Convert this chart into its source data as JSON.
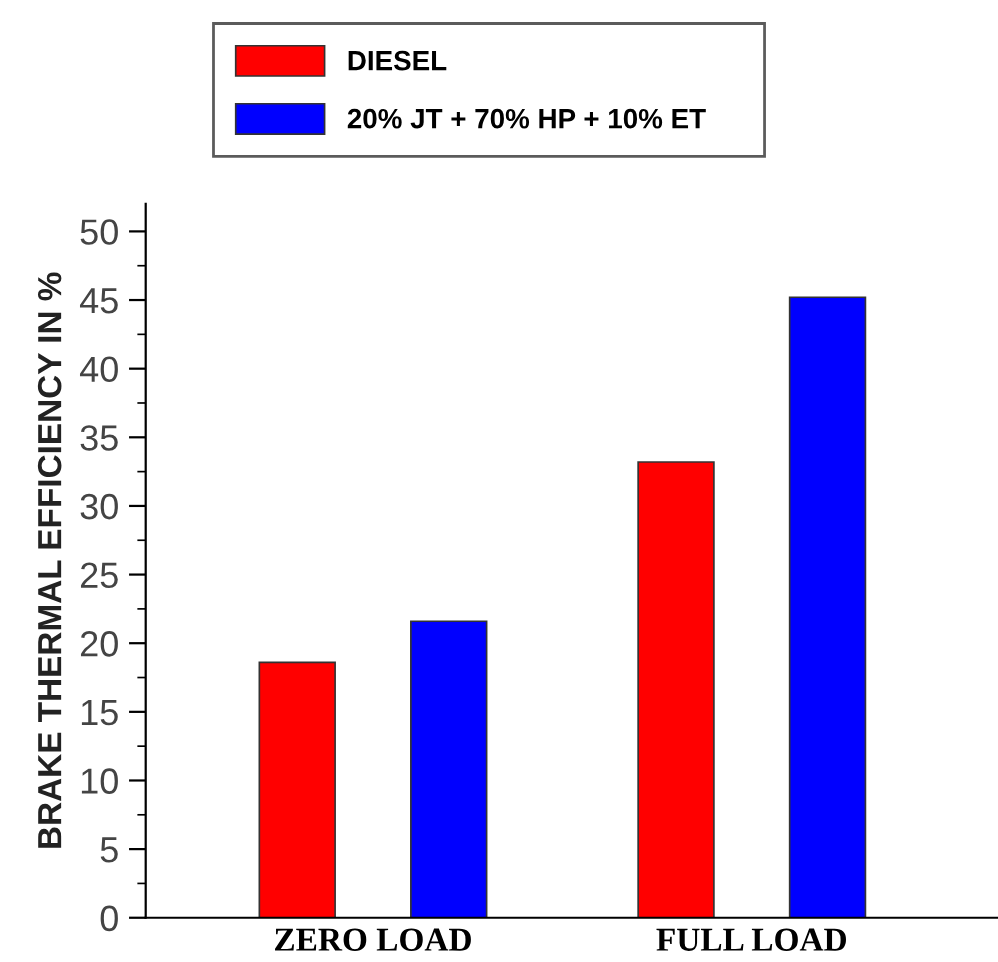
{
  "chart_data": {
    "type": "bar",
    "ylabel": "BRAKE THERMAL EFFICIENCY IN %",
    "categories": [
      "ZERO LOAD",
      "FULL LOAD"
    ],
    "series": [
      {
        "name": "DIESEL",
        "color": "#ff0000",
        "values": [
          18.6,
          33.2
        ]
      },
      {
        "name": "20% JT + 70% HP + 10% ET",
        "color": "#0000ff",
        "values": [
          21.6,
          45.2
        ]
      }
    ],
    "ylim": [
      0,
      52
    ],
    "yticks": [
      0,
      5,
      10,
      15,
      20,
      25,
      30,
      35,
      40,
      45,
      50
    ],
    "grid": false,
    "legend": "top"
  }
}
